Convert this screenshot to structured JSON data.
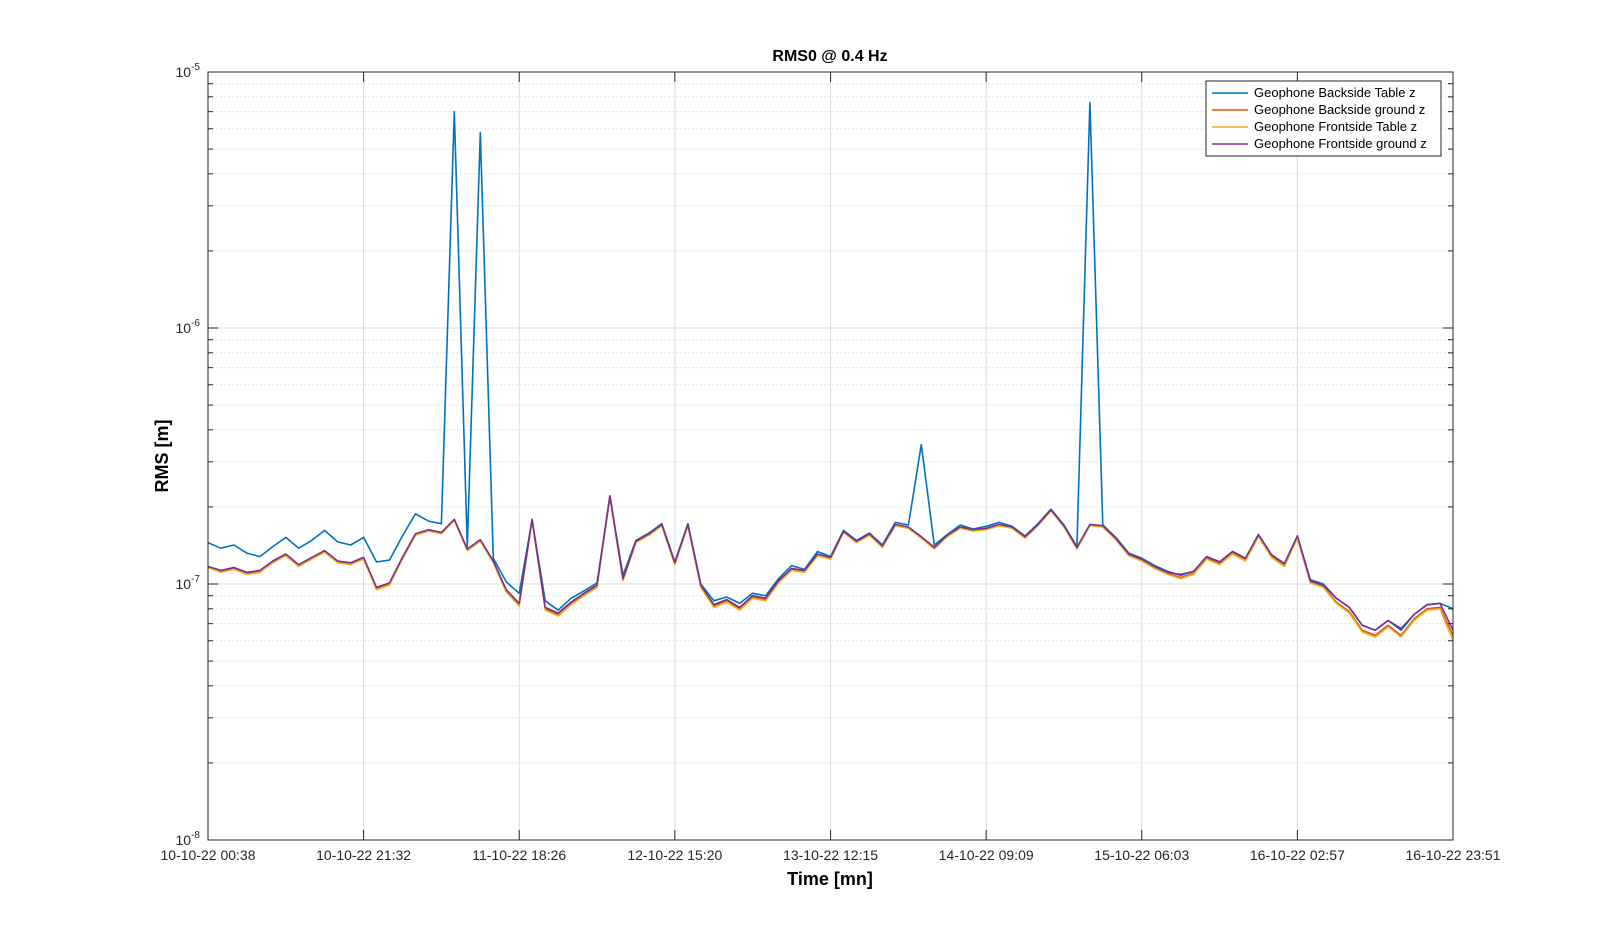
{
  "chart_data": {
    "type": "line",
    "title": "RMS0 @ 0.4 Hz",
    "xlabel": "Time [mn]",
    "ylabel": "RMS [m]",
    "y_scale": "log",
    "ylim": [
      1e-08,
      1e-05
    ],
    "y_ticks": [
      {
        "value": 1e-08,
        "base": "10",
        "exp": "-8"
      },
      {
        "value": 1e-07,
        "base": "10",
        "exp": "-7"
      },
      {
        "value": 1e-06,
        "base": "10",
        "exp": "-6"
      },
      {
        "value": 1e-05,
        "base": "10",
        "exp": "-5"
      }
    ],
    "x_ticks": [
      "10-10-22 00:38",
      "10-10-22 21:32",
      "11-10-22 18:26",
      "12-10-22 15:20",
      "13-10-22 12:15",
      "14-10-22 09:09",
      "15-10-22 06:03",
      "16-10-22 02:57",
      "16-10-22 23:51"
    ],
    "x": [
      "10-10-22 00:38",
      "10-10-22 02:22",
      "10-10-22 04:07",
      "10-10-22 05:51",
      "10-10-22 07:36",
      "10-10-22 09:20",
      "10-10-22 11:05",
      "10-10-22 12:49",
      "10-10-22 14:34",
      "10-10-22 16:18",
      "10-10-22 18:03",
      "10-10-22 19:47",
      "10-10-22 21:32",
      "10-10-22 23:16",
      "11-10-22 01:01",
      "11-10-22 02:45",
      "11-10-22 04:30",
      "11-10-22 06:14",
      "11-10-22 07:59",
      "11-10-22 09:43",
      "11-10-22 11:28",
      "11-10-22 13:12",
      "11-10-22 14:57",
      "11-10-22 16:41",
      "11-10-22 18:26",
      "11-10-22 20:10",
      "11-10-22 21:55",
      "11-10-22 23:39",
      "12-10-22 01:24",
      "12-10-22 03:08",
      "12-10-22 04:53",
      "12-10-22 06:37",
      "12-10-22 08:22",
      "12-10-22 10:06",
      "12-10-22 11:51",
      "12-10-22 13:35",
      "12-10-22 15:20",
      "12-10-22 17:05",
      "12-10-22 18:49",
      "12-10-22 20:34",
      "12-10-22 22:18",
      "13-10-22 00:03",
      "13-10-22 01:47",
      "13-10-22 03:32",
      "13-10-22 05:16",
      "13-10-22 07:01",
      "13-10-22 08:45",
      "13-10-22 10:30",
      "13-10-22 12:15",
      "13-10-22 13:59",
      "13-10-22 15:44",
      "13-10-22 17:28",
      "13-10-22 19:13",
      "13-10-22 20:57",
      "13-10-22 22:42",
      "14-10-22 00:26",
      "14-10-22 02:11",
      "14-10-22 03:55",
      "14-10-22 05:40",
      "14-10-22 07:24",
      "14-10-22 09:09",
      "14-10-22 10:53",
      "14-10-22 12:38",
      "14-10-22 14:22",
      "14-10-22 16:07",
      "14-10-22 17:51",
      "14-10-22 19:36",
      "14-10-22 21:20",
      "14-10-22 23:05",
      "15-10-22 00:49",
      "15-10-22 02:34",
      "15-10-22 04:18",
      "15-10-22 06:03",
      "15-10-22 07:47",
      "15-10-22 09:32",
      "15-10-22 11:16",
      "15-10-22 13:01",
      "15-10-22 14:45",
      "15-10-22 16:30",
      "15-10-22 18:14",
      "15-10-22 19:59",
      "15-10-22 21:43",
      "15-10-22 23:28",
      "16-10-22 01:12",
      "16-10-22 02:57",
      "16-10-22 04:41",
      "16-10-22 06:26",
      "16-10-22 08:10",
      "16-10-22 09:55",
      "16-10-22 11:39",
      "16-10-22 13:24",
      "16-10-22 15:08",
      "16-10-22 16:53",
      "16-10-22 18:37",
      "16-10-22 20:22",
      "16-10-22 22:06",
      "16-10-22 23:51"
    ],
    "series": [
      {
        "name": "Geophone Backside Table z",
        "color": "#0072BD",
        "values": [
          1.45e-07,
          1.38e-07,
          1.42e-07,
          1.32e-07,
          1.28e-07,
          1.4e-07,
          1.52e-07,
          1.38e-07,
          1.48e-07,
          1.62e-07,
          1.46e-07,
          1.42e-07,
          1.52e-07,
          1.22e-07,
          1.24e-07,
          1.54e-07,
          1.88e-07,
          1.76e-07,
          1.72e-07,
          7e-06,
          1.4e-07,
          5.8e-06,
          1.26e-07,
          1.02e-07,
          9.2e-08,
          1.78e-07,
          8.6e-08,
          7.9e-08,
          8.8e-08,
          9.4e-08,
          1.01e-07,
          2.2e-07,
          1.08e-07,
          1.48e-07,
          1.58e-07,
          1.72e-07,
          1.22e-07,
          1.72e-07,
          1e-07,
          8.6e-08,
          8.9e-08,
          8.4e-08,
          9.2e-08,
          9e-08,
          1.05e-07,
          1.18e-07,
          1.14e-07,
          1.34e-07,
          1.28e-07,
          1.62e-07,
          1.48e-07,
          1.58e-07,
          1.42e-07,
          1.74e-07,
          1.7e-07,
          3.5e-07,
          1.42e-07,
          1.56e-07,
          1.7e-07,
          1.64e-07,
          1.68e-07,
          1.74e-07,
          1.68e-07,
          1.54e-07,
          1.72e-07,
          1.96e-07,
          1.7e-07,
          1.4e-07,
          7.6e-06,
          1.7e-07,
          1.52e-07,
          1.32e-07,
          1.26e-07,
          1.18e-07,
          1.12e-07,
          1.08e-07,
          1.12e-07,
          1.28e-07,
          1.22e-07,
          1.34e-07,
          1.26e-07,
          1.56e-07,
          1.3e-07,
          1.2e-07,
          1.54e-07,
          1.04e-07,
          1e-07,
          8.8e-08,
          8.1e-08,
          6.9e-08,
          6.6e-08,
          7.2e-08,
          6.6e-08,
          7.6e-08,
          8.3e-08,
          8.4e-08,
          8e-08
        ]
      },
      {
        "name": "Geophone Backside ground z",
        "color": "#D95319",
        "values": [
          1.17e-07,
          1.12e-07,
          1.15e-07,
          1.1e-07,
          1.12e-07,
          1.22e-07,
          1.3e-07,
          1.18e-07,
          1.26e-07,
          1.34e-07,
          1.22e-07,
          1.2e-07,
          1.26e-07,
          9.6e-08,
          1e-07,
          1.26e-07,
          1.56e-07,
          1.62e-07,
          1.58e-07,
          1.78e-07,
          1.36e-07,
          1.48e-07,
          1.22e-07,
          9.4e-08,
          8.3e-08,
          1.78e-07,
          8e-08,
          7.6e-08,
          8.4e-08,
          9.1e-08,
          9.8e-08,
          2.2e-07,
          1.04e-07,
          1.46e-07,
          1.56e-07,
          1.7e-07,
          1.2e-07,
          1.7e-07,
          9.8e-08,
          8.2e-08,
          8.6e-08,
          8e-08,
          8.9e-08,
          8.7e-08,
          1.02e-07,
          1.14e-07,
          1.12e-07,
          1.3e-07,
          1.26e-07,
          1.6e-07,
          1.46e-07,
          1.56e-07,
          1.4e-07,
          1.7e-07,
          1.66e-07,
          1.52e-07,
          1.38e-07,
          1.54e-07,
          1.66e-07,
          1.62e-07,
          1.64e-07,
          1.7e-07,
          1.66e-07,
          1.52e-07,
          1.7e-07,
          1.94e-07,
          1.68e-07,
          1.38e-07,
          1.7e-07,
          1.68e-07,
          1.5e-07,
          1.3e-07,
          1.24e-07,
          1.16e-07,
          1.1e-07,
          1.06e-07,
          1.1e-07,
          1.26e-07,
          1.2e-07,
          1.32e-07,
          1.24e-07,
          1.54e-07,
          1.28e-07,
          1.18e-07,
          1.52e-07,
          1.02e-07,
          9.8e-08,
          8.5e-08,
          7.8e-08,
          6.6e-08,
          6.3e-08,
          6.9e-08,
          6.3e-08,
          7.3e-08,
          8e-08,
          8.1e-08,
          6.3e-08
        ]
      },
      {
        "name": "Geophone Frontside Table z",
        "color": "#EDB120",
        "values": [
          1.16e-07,
          1.11e-07,
          1.14e-07,
          1.09e-07,
          1.11e-07,
          1.21e-07,
          1.29e-07,
          1.17e-07,
          1.25e-07,
          1.33e-07,
          1.21e-07,
          1.19e-07,
          1.25e-07,
          9.5e-08,
          9.9e-08,
          1.25e-07,
          1.55e-07,
          1.61e-07,
          1.57e-07,
          1.77e-07,
          1.35e-07,
          1.47e-07,
          1.21e-07,
          9.3e-08,
          8.2e-08,
          1.77e-07,
          7.9e-08,
          7.5e-08,
          8.3e-08,
          9e-08,
          9.7e-08,
          2.18e-07,
          1.03e-07,
          1.45e-07,
          1.55e-07,
          1.69e-07,
          1.19e-07,
          1.69e-07,
          9.7e-08,
          8.1e-08,
          8.5e-08,
          7.9e-08,
          8.8e-08,
          8.6e-08,
          1.01e-07,
          1.13e-07,
          1.11e-07,
          1.29e-07,
          1.25e-07,
          1.59e-07,
          1.45e-07,
          1.55e-07,
          1.39e-07,
          1.69e-07,
          1.65e-07,
          1.51e-07,
          1.37e-07,
          1.53e-07,
          1.65e-07,
          1.61e-07,
          1.63e-07,
          1.69e-07,
          1.65e-07,
          1.51e-07,
          1.69e-07,
          1.93e-07,
          1.67e-07,
          1.37e-07,
          1.69e-07,
          1.67e-07,
          1.49e-07,
          1.29e-07,
          1.23e-07,
          1.15e-07,
          1.09e-07,
          1.05e-07,
          1.09e-07,
          1.25e-07,
          1.19e-07,
          1.31e-07,
          1.23e-07,
          1.53e-07,
          1.27e-07,
          1.17e-07,
          1.51e-07,
          1.01e-07,
          9.7e-08,
          8.4e-08,
          7.7e-08,
          6.5e-08,
          6.2e-08,
          6.8e-08,
          6.2e-08,
          7.2e-08,
          7.9e-08,
          8e-08,
          6e-08
        ]
      },
      {
        "name": "Geophone Frontside ground z",
        "color": "#7E2F8E",
        "values": [
          1.17e-07,
          1.13e-07,
          1.16e-07,
          1.11e-07,
          1.13e-07,
          1.23e-07,
          1.31e-07,
          1.19e-07,
          1.27e-07,
          1.35e-07,
          1.23e-07,
          1.21e-07,
          1.27e-07,
          9.7e-08,
          1.01e-07,
          1.27e-07,
          1.57e-07,
          1.63e-07,
          1.59e-07,
          1.79e-07,
          1.37e-07,
          1.49e-07,
          1.23e-07,
          9.5e-08,
          8.4e-08,
          1.79e-07,
          8.1e-08,
          7.7e-08,
          8.5e-08,
          9.2e-08,
          9.9e-08,
          2.21e-07,
          1.05e-07,
          1.47e-07,
          1.57e-07,
          1.71e-07,
          1.21e-07,
          1.71e-07,
          9.9e-08,
          8.3e-08,
          8.7e-08,
          8.1e-08,
          9e-08,
          8.8e-08,
          1.03e-07,
          1.15e-07,
          1.13e-07,
          1.31e-07,
          1.27e-07,
          1.61e-07,
          1.47e-07,
          1.57e-07,
          1.41e-07,
          1.71e-07,
          1.67e-07,
          1.53e-07,
          1.39e-07,
          1.55e-07,
          1.67e-07,
          1.63e-07,
          1.65e-07,
          1.71e-07,
          1.67e-07,
          1.53e-07,
          1.71e-07,
          1.95e-07,
          1.69e-07,
          1.39e-07,
          1.71e-07,
          1.69e-07,
          1.51e-07,
          1.31e-07,
          1.25e-07,
          1.17e-07,
          1.11e-07,
          1.09e-07,
          1.12e-07,
          1.28e-07,
          1.22e-07,
          1.34e-07,
          1.26e-07,
          1.56e-07,
          1.3e-07,
          1.2e-07,
          1.54e-07,
          1.03e-07,
          9.9e-08,
          8.8e-08,
          8.1e-08,
          6.9e-08,
          6.6e-08,
          7.2e-08,
          6.7e-08,
          7.6e-08,
          8.3e-08,
          8.4e-08,
          6.6e-08
        ]
      }
    ],
    "grid": true,
    "minor_grid": true,
    "legend_position": "top-right"
  }
}
